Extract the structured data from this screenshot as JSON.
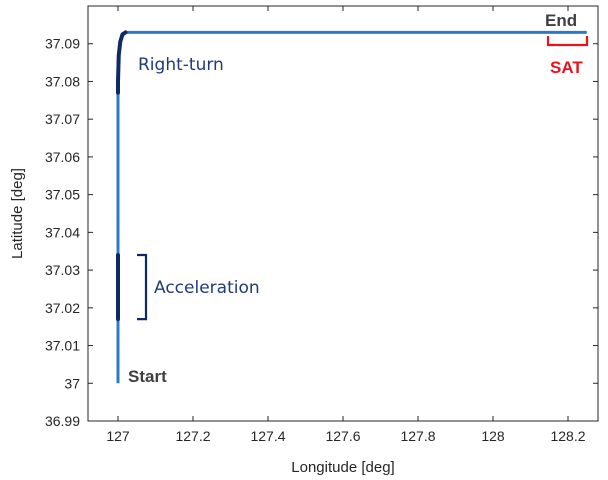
{
  "chart_data": {
    "type": "line",
    "xlabel": "Longitude [deg]",
    "ylabel": "Latitude [deg]",
    "xlim": [
      126.92,
      128.28
    ],
    "ylim": [
      36.99,
      37.1
    ],
    "xticks": [
      127,
      127.2,
      127.4,
      127.6,
      127.8,
      128,
      128.2
    ],
    "xtick_labels": [
      "127",
      "127.2",
      "127.4",
      "127.6",
      "127.8",
      "128",
      "128.2"
    ],
    "yticks": [
      36.99,
      37,
      37.01,
      37.02,
      37.03,
      37.04,
      37.05,
      37.06,
      37.07,
      37.08,
      37.09
    ],
    "ytick_labels": [
      "36.99",
      "37",
      "37.01",
      "37.02",
      "37.03",
      "37.04",
      "37.05",
      "37.06",
      "37.07",
      "37.08",
      "37.09"
    ],
    "grid": false,
    "series": [
      {
        "color": "#2b7bc8",
        "x": [
          127,
          127,
          127.002,
          127.006,
          127.012,
          127.02,
          128.25
        ],
        "y": [
          37,
          37.08,
          37.087,
          37.0905,
          37.0925,
          37.093,
          37.093
        ]
      }
    ],
    "highlights": [
      {
        "color": "#0d2a66",
        "x": [
          127,
          127
        ],
        "y": [
          37.017,
          37.034
        ]
      },
      {
        "color": "#0d2a66",
        "x": [
          127,
          127,
          127.002,
          127.006,
          127.012,
          127.02
        ],
        "y": [
          37.077,
          37.08,
          37.087,
          37.0905,
          37.0925,
          37.093
        ]
      }
    ],
    "annotations": {
      "start": "Start",
      "end": "End",
      "right_turn": "Right-turn",
      "acceleration": "Acceleration",
      "sat": "SAT"
    },
    "colors": {
      "trajectory": "#2b7bc8",
      "highlight": "#0d2a66",
      "annotation": "#1f3b7a",
      "sat": "#e8141c",
      "axis": "#262626"
    }
  }
}
